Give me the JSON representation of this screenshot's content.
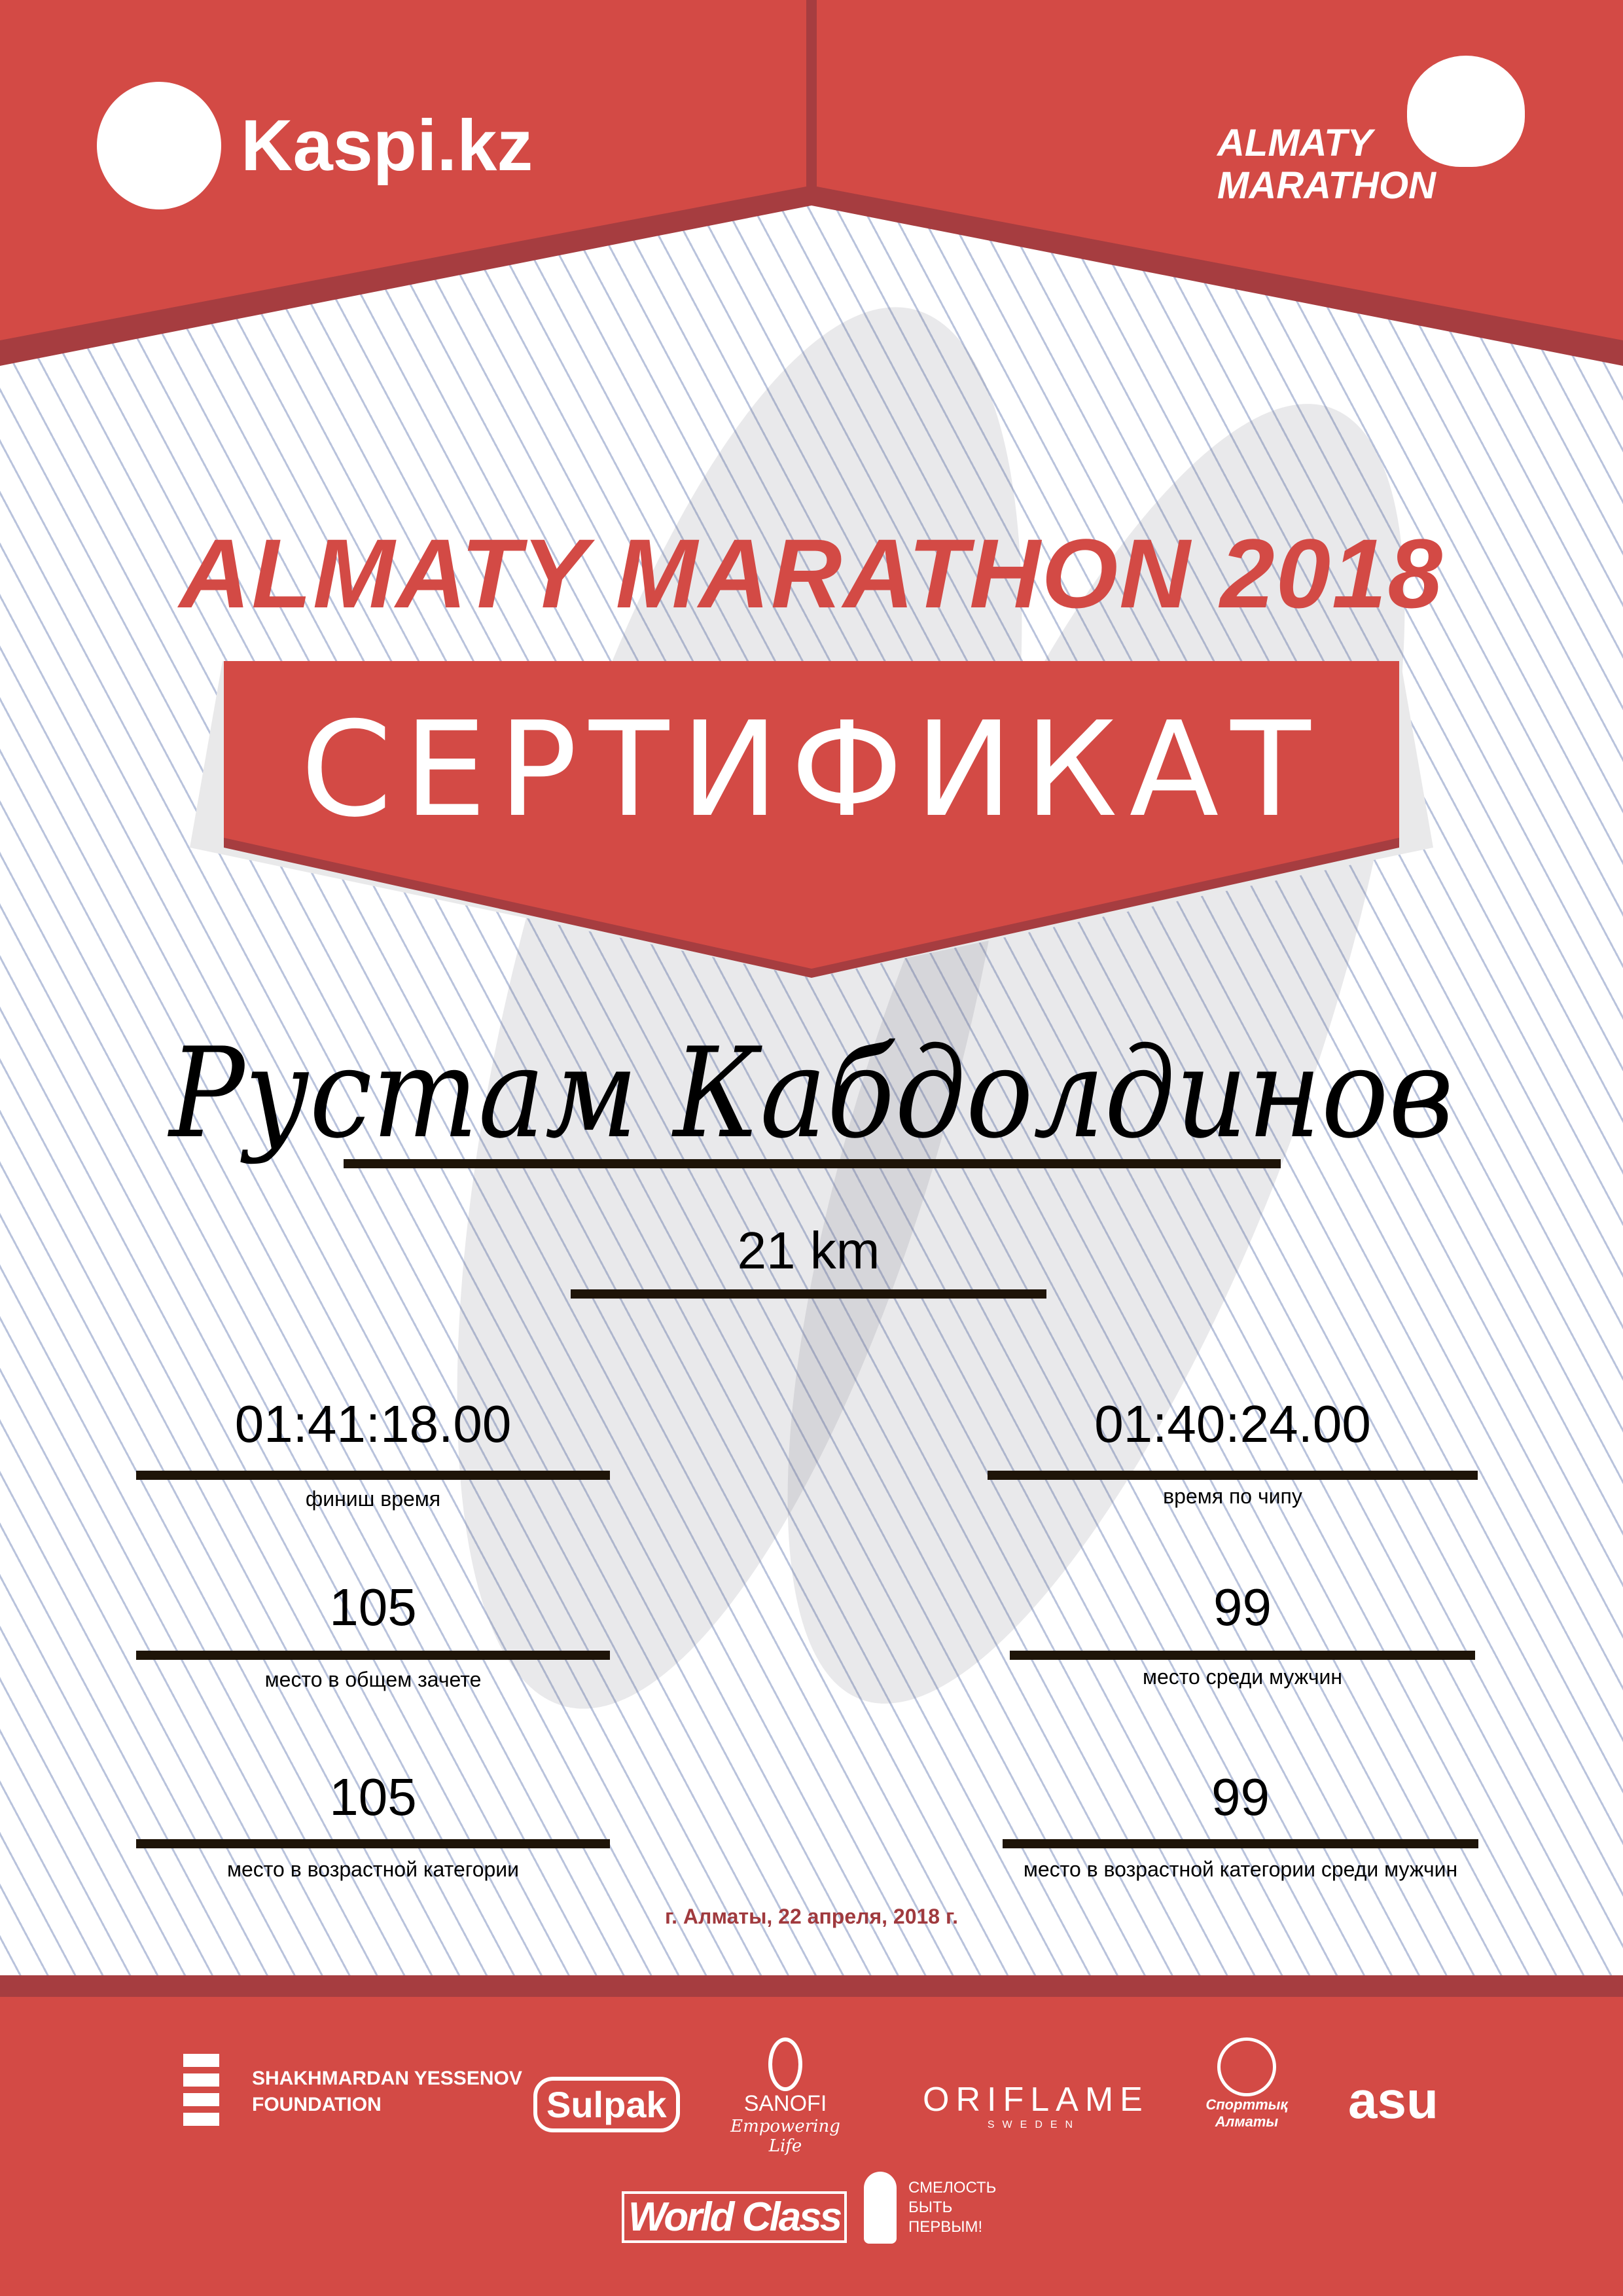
{
  "colors": {
    "brand_red": "#d34a45",
    "dark_red": "#a63d40",
    "date_red": "#a03a3e",
    "line": "#1e1408"
  },
  "header": {
    "left_logo": "Kaspi.kz",
    "right_logo_line1": "ALMATY",
    "right_logo_line2": "MARATHON"
  },
  "title": "ALMATY MARATHON 2018",
  "certificate_label": "СЕРТИФИКАТ",
  "participant": {
    "name": "Рустам Кабдолдинов",
    "distance": "21 km"
  },
  "results": [
    {
      "value": "01:41:18.00",
      "label": "финиш время"
    },
    {
      "value": "01:40:24.00",
      "label": "время по чипу"
    },
    {
      "value": "105",
      "label": "место в общем зачете"
    },
    {
      "value": "99",
      "label": "место среди мужчин"
    },
    {
      "value": "105",
      "label": "место в возрастной категории"
    },
    {
      "value": "99",
      "label": "место в возрастной категории среди мужчин"
    }
  ],
  "date": "г. Алматы, 22 апреля, 2018 г.",
  "sponsors": {
    "yessenov_1": "SHAKHMARDAN YESSENOV",
    "yessenov_2": "FOUNDATION",
    "sulpak": "Sulpak",
    "sanofi": "SANOFI",
    "sanofi_tag": "Empowering Life",
    "oriflame": "ORIFLAME",
    "oriflame_sub": "SWEDEN",
    "sport": "Спорттық Алматы",
    "asu": "asu",
    "worldclass": "World Class",
    "fund_1": "СМЕЛОСТЬ",
    "fund_2": "БЫТЬ",
    "fund_3": "ПЕРВЫМ!"
  }
}
